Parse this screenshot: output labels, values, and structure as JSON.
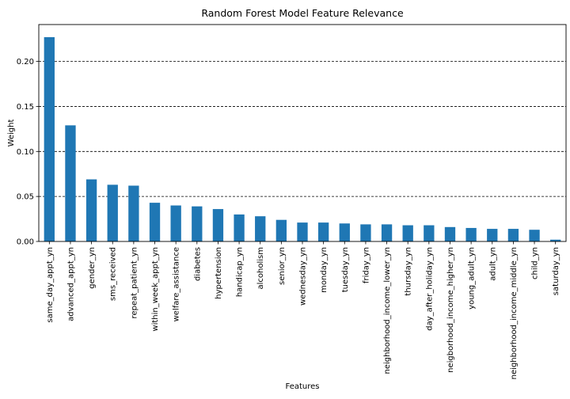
{
  "chart_data": {
    "type": "bar",
    "title": "Random Forest Model Feature Relevance",
    "xlabel": "Features",
    "ylabel": "Weight",
    "ylim": [
      0,
      0.241
    ],
    "yticks": [
      "0.00",
      "0.05",
      "0.10",
      "0.15",
      "0.20"
    ],
    "grid": "horizontal dashed",
    "bar_color": "#1f77b4",
    "categories": [
      "same_day_appt_yn",
      "advanced_appt_yn",
      "gender_yn",
      "sms_received",
      "repeat_patient_yn",
      "within_week_appt_yn",
      "welfare_assistance",
      "diabetes",
      "hypertension",
      "handicap_yn",
      "alcoholism",
      "senior_yn",
      "wednesday_yn",
      "monday_yn",
      "tuesday_yn",
      "friday_yn",
      "neighborhood_income_lower_yn",
      "thursday_yn",
      "day_after_holiday_yn",
      "neigborhood_income_higher_yn",
      "young_adult_yn",
      "adult_yn",
      "neighborhood_income_middle_yn",
      "child_yn",
      "saturday_yn"
    ],
    "values": [
      0.227,
      0.129,
      0.069,
      0.063,
      0.062,
      0.043,
      0.04,
      0.039,
      0.036,
      0.03,
      0.028,
      0.024,
      0.021,
      0.021,
      0.02,
      0.019,
      0.019,
      0.018,
      0.018,
      0.016,
      0.015,
      0.014,
      0.014,
      0.013,
      0.002
    ]
  }
}
